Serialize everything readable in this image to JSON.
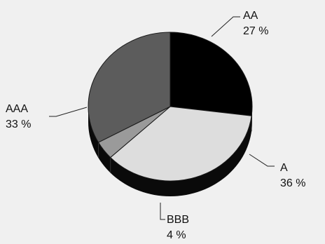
{
  "chart_data": {
    "type": "pie",
    "title": "",
    "three_d": true,
    "start_angle_deg": 90,
    "direction": "clockwise",
    "slices": [
      {
        "label": "AA",
        "value": 27,
        "value_text": "27 %",
        "color": "#000000"
      },
      {
        "label": "A",
        "value": 36,
        "value_text": "36 %",
        "color": "#dddddd"
      },
      {
        "label": "BBB",
        "value": 4,
        "value_text": "4 %",
        "color": "#9a9a9a"
      },
      {
        "label": "AAA",
        "value": 33,
        "value_text": "33 %",
        "color": "#5c5c5c"
      }
    ]
  },
  "colors": {
    "background": "#f0f0f0",
    "side_wall": "#0a0a0a",
    "edge": "#1a1a1a"
  }
}
